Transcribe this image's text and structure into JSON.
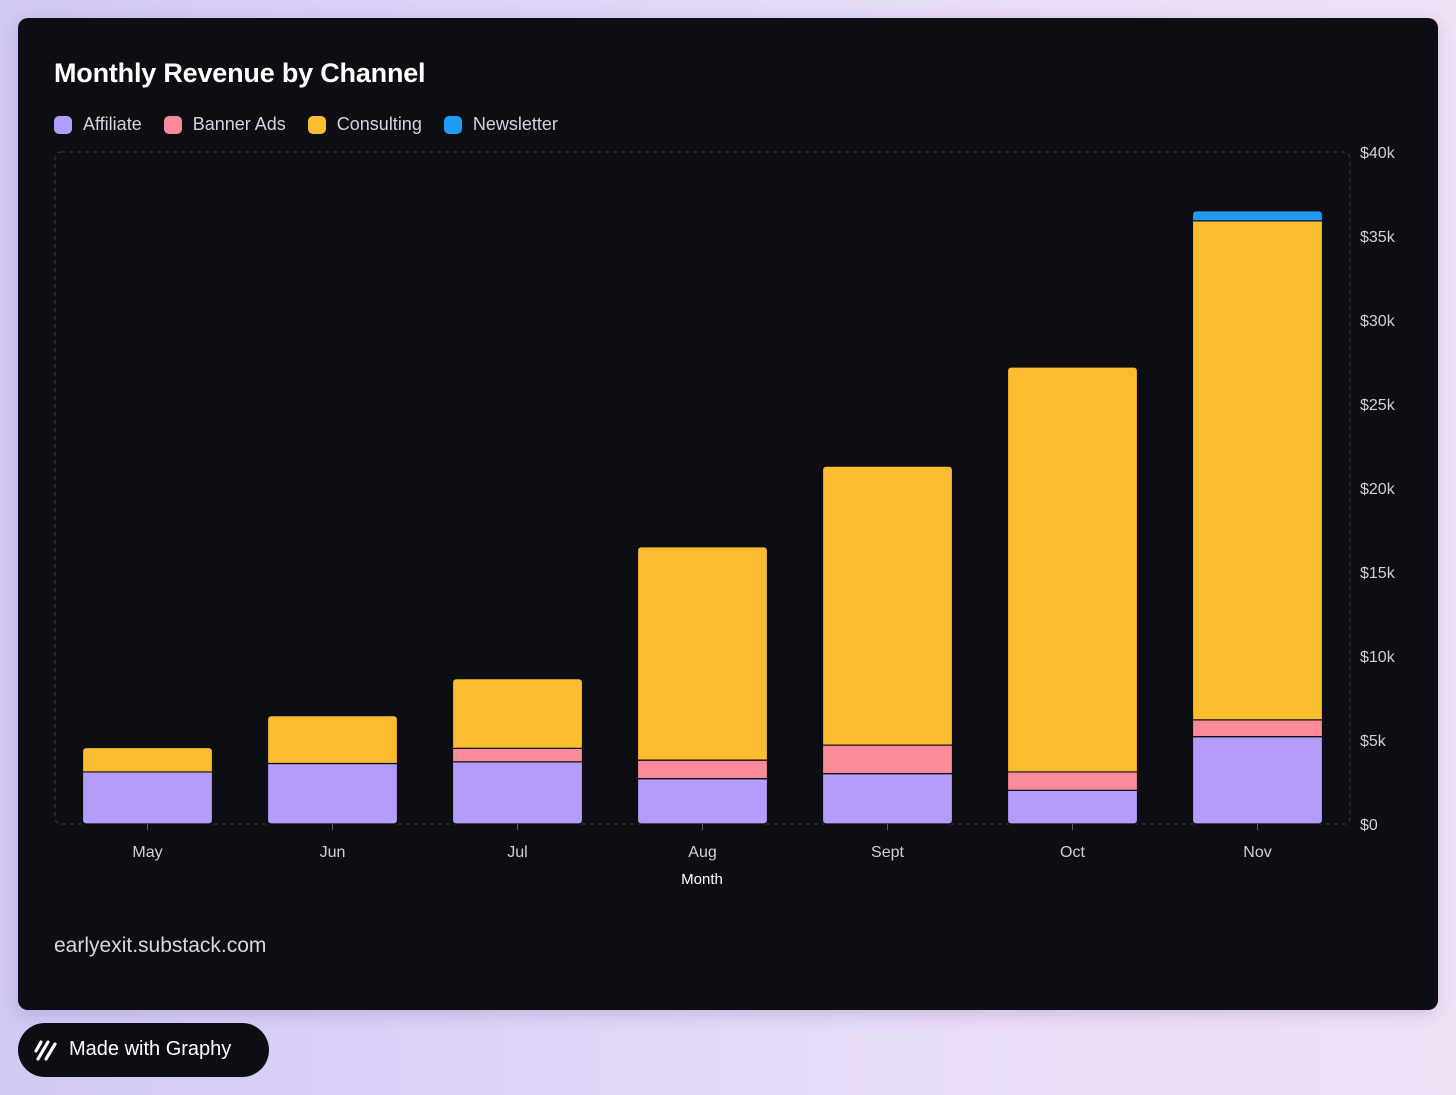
{
  "card": {
    "footer_url": "earlyexit.substack.com"
  },
  "badge": {
    "label": "Made with Graphy",
    "icon": "graphy-logo-icon"
  },
  "colors": {
    "background": "#0d0e13",
    "affiliate": "#b39cfa",
    "banner_ads": "#fb8b9a",
    "consulting": "#fbbc2f",
    "newsletter": "#1f9bf6"
  },
  "chart_data": {
    "type": "bar",
    "stacked": true,
    "title": "Monthly Revenue by Channel",
    "xlabel": "Month",
    "ylabel": "",
    "ylim": [
      0,
      40000
    ],
    "yticks": [
      0,
      5000,
      10000,
      15000,
      20000,
      25000,
      30000,
      35000,
      40000
    ],
    "ytick_labels": [
      "$0",
      "$5k",
      "$10k",
      "$15k",
      "$20k",
      "$25k",
      "$30k",
      "$35k",
      "$40k"
    ],
    "y_axis_position": "right",
    "legend_position": "top-left",
    "categories": [
      "May",
      "Jun",
      "Jul",
      "Aug",
      "Sept",
      "Oct",
      "Nov"
    ],
    "series": [
      {
        "name": "Affiliate",
        "color": "#b39cfa",
        "values": [
          3100,
          3600,
          3700,
          2700,
          3000,
          2000,
          5200
        ]
      },
      {
        "name": "Banner Ads",
        "color": "#fb8b9a",
        "values": [
          0,
          0,
          800,
          1100,
          1700,
          1100,
          1000
        ]
      },
      {
        "name": "Consulting",
        "color": "#fbbc2f",
        "values": [
          1450,
          2850,
          4150,
          12700,
          16600,
          24100,
          29700
        ]
      },
      {
        "name": "Newsletter",
        "color": "#1f9bf6",
        "values": [
          0,
          0,
          0,
          0,
          0,
          0,
          600
        ]
      }
    ]
  }
}
